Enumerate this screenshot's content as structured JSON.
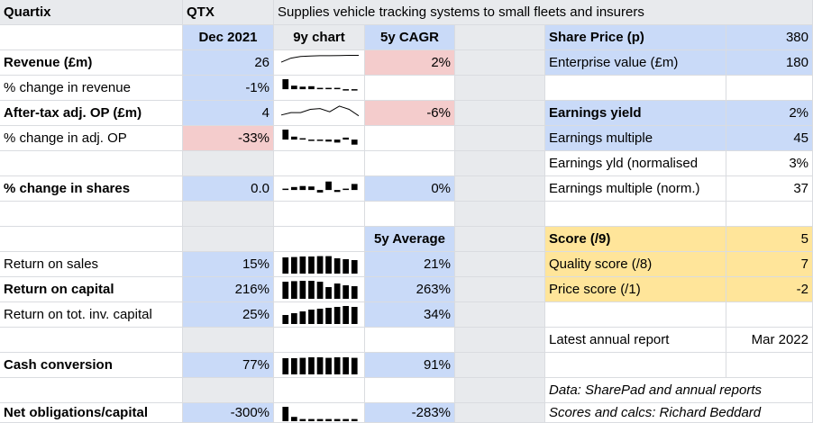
{
  "header": {
    "company": "Quartix",
    "ticker": "QTX",
    "description": "Supplies vehicle tracking systems to small fleets and insurers"
  },
  "columns": {
    "period": "Dec 2021",
    "chart": "9y chart",
    "cagr": "5y CAGR",
    "average": "5y Average"
  },
  "metrics": {
    "revenue": {
      "label": "Revenue (£m)",
      "value": "26",
      "five_year": "2%",
      "spark": [
        0.55,
        0.8,
        0.9,
        0.93,
        0.95,
        0.95,
        0.96,
        0.97,
        0.97
      ]
    },
    "revenue_change": {
      "label": "% change in revenue",
      "value": "-1%",
      "spark": [
        1.0,
        0.35,
        0.25,
        0.3,
        0.05,
        0.05,
        0.05,
        -0.05,
        -0.05
      ]
    },
    "op": {
      "label": "After-tax adj. OP (£m)",
      "value": "4",
      "five_year": "-6%",
      "spark": [
        0.4,
        0.55,
        0.55,
        0.75,
        0.8,
        0.6,
        0.95,
        0.75,
        0.35
      ]
    },
    "op_change": {
      "label": "% change in adj. OP",
      "value": "-33%",
      "spark": [
        1.0,
        0.3,
        0.05,
        -0.05,
        -0.05,
        -0.2,
        -0.3,
        0.2,
        -0.5
      ]
    },
    "shares_change": {
      "label": "% change in shares",
      "value": "0.0",
      "five_year": "0%",
      "spark": [
        0.1,
        0.3,
        0.4,
        0.35,
        -0.25,
        0.85,
        -0.2,
        0.1,
        0.6
      ]
    },
    "return_on_sales": {
      "label": "Return on sales",
      "value": "15%",
      "five_year": "21%",
      "spark": [
        0.9,
        0.92,
        0.95,
        0.95,
        0.97,
        0.97,
        0.85,
        0.8,
        0.75
      ]
    },
    "return_on_capital": {
      "label": "Return on capital",
      "value": "216%",
      "five_year": "263%",
      "spark": [
        0.95,
        0.98,
        1.0,
        1.0,
        0.95,
        0.65,
        0.85,
        0.75,
        0.7
      ]
    },
    "return_on_total_capital": {
      "label": "Return on tot. inv. capital",
      "value": "25%",
      "five_year": "34%",
      "spark": [
        0.5,
        0.6,
        0.7,
        0.8,
        0.85,
        0.9,
        0.95,
        1.0,
        0.95
      ]
    },
    "cash_conversion": {
      "label": "Cash conversion",
      "value": "77%",
      "five_year": "91%",
      "spark": [
        0.9,
        0.9,
        0.92,
        0.95,
        0.95,
        0.92,
        0.95,
        0.95,
        0.92
      ]
    },
    "net_obligations": {
      "label": "Net obligations/capital",
      "value": "-300%",
      "five_year": "-283%",
      "spark": [
        1.0,
        0.3,
        0.15,
        0.15,
        0.15,
        0.15,
        0.15,
        0.15,
        0.15
      ]
    }
  },
  "valuation": {
    "share_price": {
      "label": "Share Price (p)",
      "value": "380"
    },
    "enterprise_value": {
      "label": "Enterprise value (£m)",
      "value": "180"
    },
    "earnings_yield": {
      "label": "Earnings yield",
      "value": "2%"
    },
    "earnings_multiple": {
      "label": "Earnings multiple",
      "value": "45"
    },
    "earnings_yield_norm": {
      "label": "Earnings yld (normalised",
      "value": "3%"
    },
    "earnings_multiple_norm": {
      "label": "Earnings multiple (norm.)",
      "value": "37"
    }
  },
  "score": {
    "total": {
      "label": "Score (/9)",
      "value": "5"
    },
    "quality": {
      "label": "Quality score (/8)",
      "value": "7"
    },
    "price": {
      "label": "Price score (/1)",
      "value": "-2"
    }
  },
  "report": {
    "label": "Latest annual report",
    "value": "Mar 2022"
  },
  "credits": {
    "data": "Data: SharePad and annual reports",
    "calcs": "Scores and calcs: Richard Beddard"
  },
  "colors": {
    "blue": "#c9daf8",
    "grey": "#e8eaed",
    "pink": "#f4cccc",
    "yellow": "#ffe59a"
  }
}
